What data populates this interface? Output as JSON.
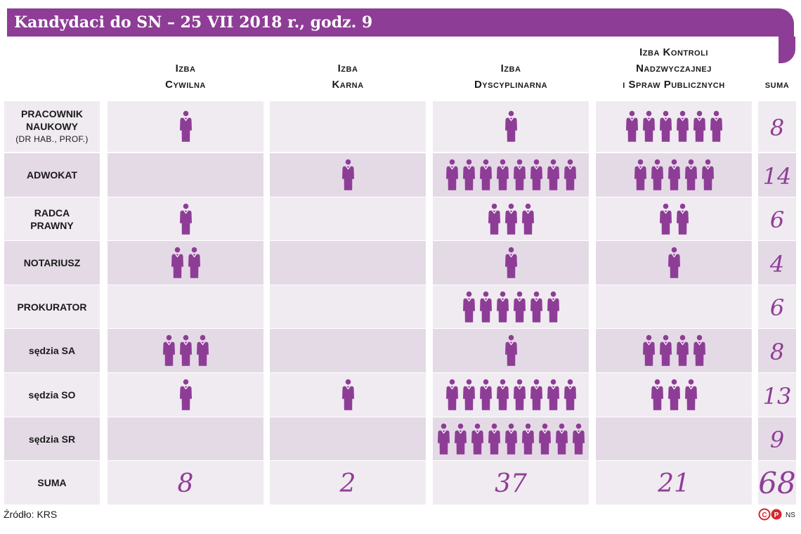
{
  "title": "Kandydaci do SN – 25 VII 2018 r., godz. 9",
  "source": "Źródło: KRS",
  "credit": "NS",
  "colors": {
    "accent": "#8e3d96",
    "band_light": "#f0ebf1",
    "band_dark": "#e4dae6"
  },
  "icons": {
    "figure": "person-icon",
    "copyright": "copyright-badge-icon",
    "photo": "p-badge-icon"
  },
  "chart_data": {
    "type": "table",
    "icon_unit": "1 candidate",
    "columns": [
      {
        "lines": [
          "Izba",
          "Cywilna"
        ]
      },
      {
        "lines": [
          "Izba",
          "Karna"
        ]
      },
      {
        "lines": [
          "Izba",
          "Dyscyplinarna"
        ]
      },
      {
        "lines": [
          "Izba Kontroli",
          "Nadzwyczajnej",
          "i Spraw Publicznych"
        ]
      }
    ],
    "sum_label": "suma",
    "rows": [
      {
        "lines": [
          "PRACOWNIK",
          "NAUKOWY",
          "(DR HAB., PROF.)"
        ],
        "values": [
          1,
          0,
          1,
          6
        ],
        "sum": "8"
      },
      {
        "lines": [
          "ADWOKAT"
        ],
        "values": [
          0,
          1,
          8,
          5
        ],
        "sum": "14"
      },
      {
        "lines": [
          "RADCA",
          "PRAWNY"
        ],
        "values": [
          1,
          0,
          3,
          2
        ],
        "sum": "6"
      },
      {
        "lines": [
          "NOTARIUSZ"
        ],
        "values": [
          2,
          0,
          1,
          1
        ],
        "sum": "4"
      },
      {
        "lines": [
          "PROKURATOR"
        ],
        "values": [
          0,
          0,
          6,
          0
        ],
        "sum": "6"
      },
      {
        "lines": [
          "sędzia SA"
        ],
        "values": [
          3,
          0,
          1,
          4
        ],
        "sum": "8"
      },
      {
        "lines": [
          "sędzia SO"
        ],
        "values": [
          1,
          1,
          8,
          3
        ],
        "sum": "13"
      },
      {
        "lines": [
          "sędzia SR"
        ],
        "values": [
          0,
          0,
          9,
          0
        ],
        "sum": "9"
      }
    ],
    "total_row": {
      "label": "SUMA",
      "values": [
        "8",
        "2",
        "37",
        "21"
      ],
      "sum": "68"
    }
  }
}
